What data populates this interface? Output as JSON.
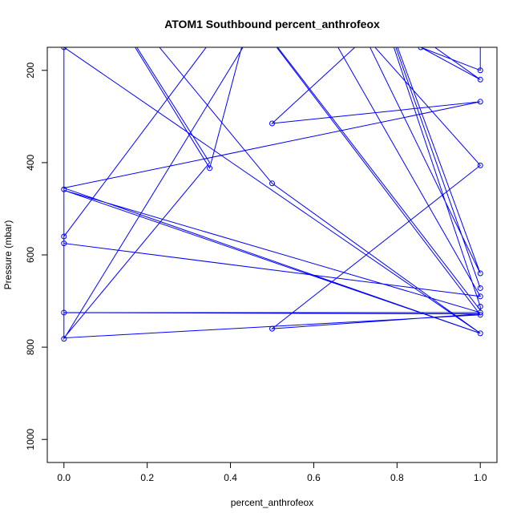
{
  "chart_data": {
    "type": "line",
    "title": "ATOM1 Southbound percent_anthrofeox",
    "xlabel": "percent_anthrofeox",
    "ylabel": "Pressure (mbar)",
    "xlim": [
      -0.04,
      1.04
    ],
    "ylim": [
      1050,
      150
    ],
    "y_inverted": true,
    "x_ticks": [
      "0.0",
      "0.2",
      "0.4",
      "0.6",
      "0.8",
      "1.0"
    ],
    "y_ticks": [
      "200",
      "400",
      "600",
      "800",
      "1000"
    ],
    "grid": false,
    "line_color": "#0000ff",
    "series": [
      {
        "points": [
          {
            "x": 0.0,
            "y": 150
          },
          {
            "x": 0.0,
            "y": 560
          },
          {
            "x": 0.4,
            "y": 80
          },
          {
            "x": 0.0,
            "y": 150
          },
          {
            "x": 1.0,
            "y": 770
          },
          {
            "x": 0.0,
            "y": 455
          },
          {
            "x": 1.0,
            "y": 268
          },
          {
            "x": 0.5,
            "y": 315
          },
          {
            "x": 1.0,
            "y": -100
          },
          {
            "x": 1.0,
            "y": 200
          },
          {
            "x": 0.857,
            "y": 150
          },
          {
            "x": 1.0,
            "y": 220
          },
          {
            "x": 0.5,
            "y": -100
          },
          {
            "x": 0.35,
            "y": 412
          },
          {
            "x": 0.0,
            "y": -100
          },
          {
            "x": 0.0,
            "y": 575
          },
          {
            "x": 1.0,
            "y": 690
          },
          {
            "x": 0.5,
            "y": -100
          },
          {
            "x": 1.0,
            "y": 406
          },
          {
            "x": 0.5,
            "y": 760
          },
          {
            "x": 1.0,
            "y": 728
          },
          {
            "x": 0.0,
            "y": 725
          },
          {
            "x": 1.0,
            "y": 725
          },
          {
            "x": 0.0,
            "y": 460
          },
          {
            "x": 1.0,
            "y": 770
          },
          {
            "x": 0.5,
            "y": 445
          },
          {
            "x": 0.0,
            "y": -100
          },
          {
            "x": 0.0,
            "y": 782
          },
          {
            "x": 0.6,
            "y": -100
          },
          {
            "x": 1.0,
            "y": 640
          },
          {
            "x": 0.7,
            "y": -100
          },
          {
            "x": 1.0,
            "y": 672
          },
          {
            "x": 0.7,
            "y": -100
          },
          {
            "x": 1.0,
            "y": 712
          },
          {
            "x": 1.0,
            "y": 720
          },
          {
            "x": 0.3,
            "y": -100
          },
          {
            "x": 1.0,
            "y": 730
          },
          {
            "x": 0.0,
            "y": 780
          },
          {
            "x": 0.35,
            "y": 400
          },
          {
            "x": 0.0,
            "y": -100
          }
        ],
        "markers": [
          {
            "x": 0.0,
            "y": 150
          },
          {
            "x": 0.0,
            "y": 458
          },
          {
            "x": 0.0,
            "y": 560
          },
          {
            "x": 0.0,
            "y": 575
          },
          {
            "x": 0.0,
            "y": 725
          },
          {
            "x": 0.0,
            "y": 782
          },
          {
            "x": 0.35,
            "y": 412
          },
          {
            "x": 0.5,
            "y": 315
          },
          {
            "x": 0.5,
            "y": 445
          },
          {
            "x": 0.5,
            "y": 760
          },
          {
            "x": 0.857,
            "y": 150
          },
          {
            "x": 1.0,
            "y": 200
          },
          {
            "x": 1.0,
            "y": 220
          },
          {
            "x": 1.0,
            "y": 268
          },
          {
            "x": 1.0,
            "y": 406
          },
          {
            "x": 1.0,
            "y": 640
          },
          {
            "x": 1.0,
            "y": 672
          },
          {
            "x": 1.0,
            "y": 690
          },
          {
            "x": 1.0,
            "y": 712
          },
          {
            "x": 1.0,
            "y": 725
          },
          {
            "x": 1.0,
            "y": 730
          },
          {
            "x": 1.0,
            "y": 770
          }
        ]
      }
    ]
  }
}
